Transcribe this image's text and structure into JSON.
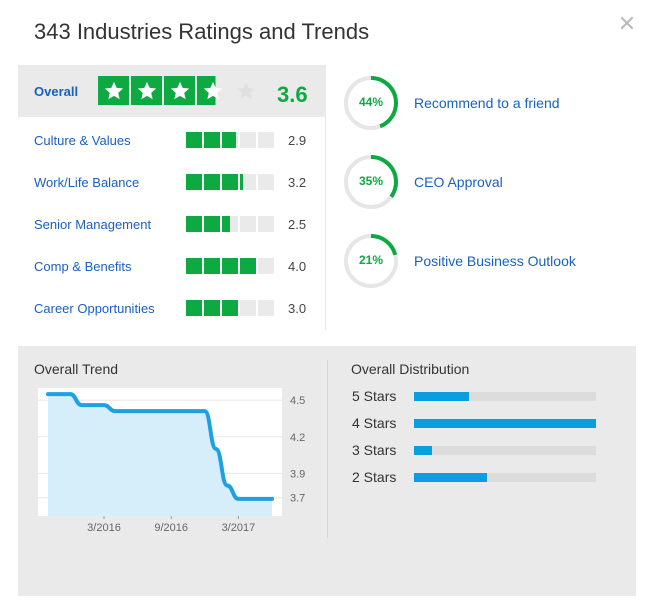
{
  "title": "343 Industries Ratings and Trends",
  "close_icon": "close-icon",
  "colors": {
    "green": "#0caa41",
    "link": "#1861bf",
    "trend_blue": "#1da1e2",
    "dist_blue": "#0a9ede"
  },
  "overall": {
    "label": "Overall",
    "value": "3.6",
    "stars": 3.6
  },
  "ratings": [
    {
      "label": "Culture & Values",
      "value": "2.9",
      "score": 2.9
    },
    {
      "label": "Work/Life Balance",
      "value": "3.2",
      "score": 3.2
    },
    {
      "label": "Senior Management",
      "value": "2.5",
      "score": 2.5
    },
    {
      "label": "Comp & Benefits",
      "value": "4.0",
      "score": 4.0
    },
    {
      "label": "Career Opportunities",
      "value": "3.0",
      "score": 3.0
    }
  ],
  "circles": [
    {
      "percent": "44%",
      "fraction": 0.44,
      "label": "Recommend to a friend"
    },
    {
      "percent": "35%",
      "fraction": 0.35,
      "label": "CEO Approval"
    },
    {
      "percent": "21%",
      "fraction": 0.21,
      "label": "Positive Business Outlook"
    }
  ],
  "trend": {
    "title": "Overall Trend",
    "chart_data": {
      "type": "area",
      "title": "Overall Trend",
      "x_ticks": [
        "3/2016",
        "9/2016",
        "3/2017"
      ],
      "y_ticks": [
        "4.5",
        "4.2",
        "3.9",
        "3.7"
      ],
      "ylim": [
        3.55,
        4.6
      ],
      "x": [
        "2015-10",
        "2015-11",
        "2015-12",
        "2016-01",
        "2016-02",
        "2016-03",
        "2016-04",
        "2016-05",
        "2016-06",
        "2016-07",
        "2016-08",
        "2016-09",
        "2016-10",
        "2016-11",
        "2016-12",
        "2017-01",
        "2017-02",
        "2017-03",
        "2017-04",
        "2017-05",
        "2017-06"
      ],
      "values": [
        4.55,
        4.55,
        4.55,
        4.46,
        4.46,
        4.46,
        4.41,
        4.41,
        4.41,
        4.41,
        4.41,
        4.41,
        4.41,
        4.41,
        4.41,
        4.1,
        3.8,
        3.69,
        3.69,
        3.69,
        3.69
      ]
    }
  },
  "distribution": {
    "title": "Overall Distribution",
    "chart_data": {
      "type": "bar",
      "title": "Overall Distribution",
      "categories": [
        "5 Stars",
        "4 Stars",
        "3 Stars",
        "2 Stars"
      ],
      "values": [
        0.3,
        1.0,
        0.1,
        0.4
      ]
    }
  }
}
